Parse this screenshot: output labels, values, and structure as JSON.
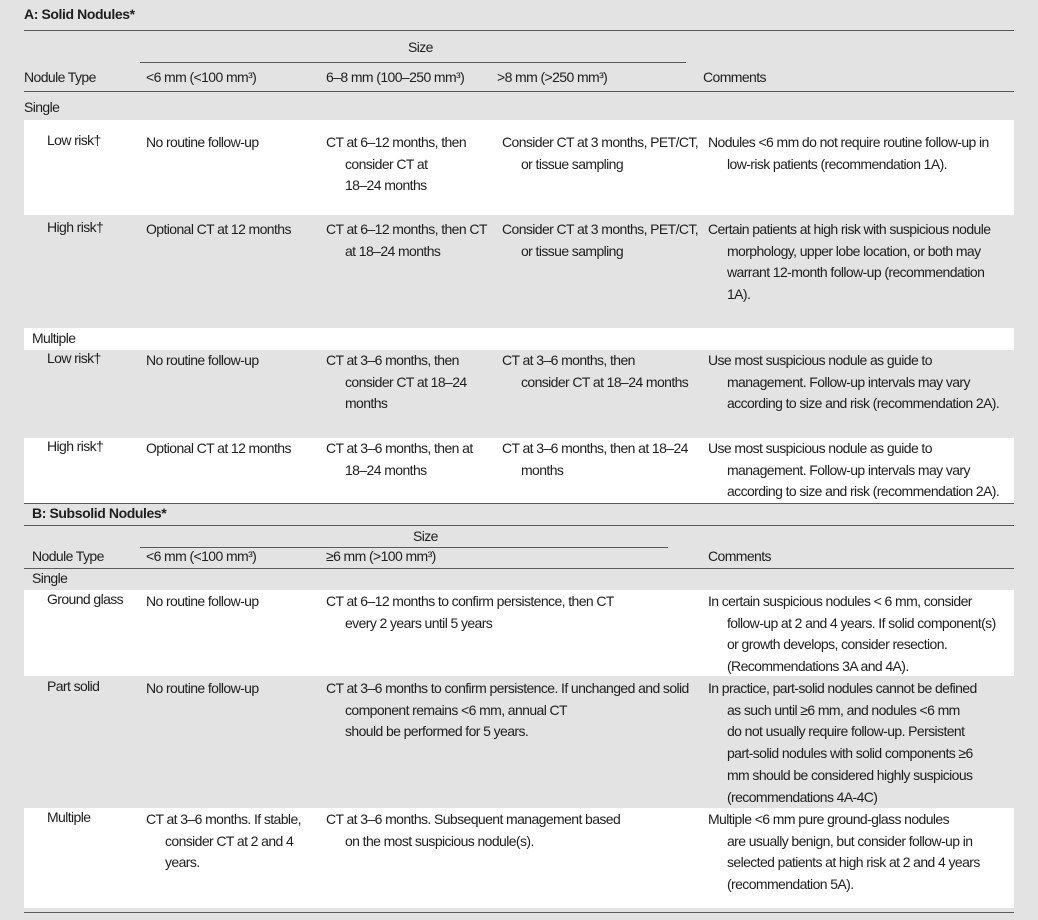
{
  "colors": {
    "background": "#e3e3e3",
    "band": "#ffffff",
    "rule": "#5a5a5a",
    "text": "#1e1e1e"
  },
  "section_a": {
    "title": "A: Solid Nodules*",
    "size_label": "Size",
    "headers": [
      "Nodule Type",
      "<6 mm (<100 mm³)",
      "6–8 mm (100–250 mm³)",
      ">8 mm (>250 mm³)",
      "Comments"
    ],
    "groups": [
      {
        "label": "Single",
        "rows": [
          {
            "type": "Low risk†",
            "cells": [
              [
                "No routine follow-up"
              ],
              [
                "CT at 6–12 months, then",
                "consider CT at",
                "18–24 months"
              ],
              [
                "Consider CT at 3 months, PET/CT,",
                "or tissue sampling"
              ],
              [
                "Nodules <6 mm do not require routine follow-up in",
                "low-risk patients (recommendation 1A)."
              ]
            ]
          },
          {
            "type": "High risk†",
            "cells": [
              [
                "Optional CT at 12 months"
              ],
              [
                "CT at 6–12 months, then CT",
                "at 18–24 months"
              ],
              [
                "Consider CT at 3 months, PET/CT,",
                "or tissue sampling"
              ],
              [
                "Certain patients at high risk with suspicious nodule",
                "morphology, upper lobe location, or both may",
                "warrant 12-month follow-up (recommendation",
                "1A)."
              ]
            ]
          }
        ]
      },
      {
        "label": "Multiple",
        "rows": [
          {
            "type": "Low risk†",
            "cells": [
              [
                "No routine follow-up"
              ],
              [
                "CT at 3–6 months, then",
                "consider CT at 18–24",
                "months"
              ],
              [
                "CT at 3–6 months, then",
                "consider CT at 18–24 months"
              ],
              [
                "Use most suspicious nodule as guide to",
                "management. Follow-up intervals may vary",
                "according to size and risk (recommendation 2A)."
              ]
            ]
          },
          {
            "type": "High risk†",
            "cells": [
              [
                "Optional CT at 12 months"
              ],
              [
                "CT at 3–6 months, then at",
                "18–24 months"
              ],
              [
                "CT at 3–6 months, then at 18–24",
                "months"
              ],
              [
                "Use most suspicious nodule as guide to",
                "management. Follow-up intervals may vary",
                "according to size and risk (recommendation 2A)."
              ]
            ]
          }
        ]
      }
    ]
  },
  "section_b": {
    "title": "B: Subsolid Nodules*",
    "size_label": "Size",
    "headers": [
      "Nodule Type",
      "<6 mm (<100 mm³)",
      "≥6 mm (>100 mm³)",
      "Comments"
    ],
    "single_label": "Single",
    "rows": [
      {
        "type": "Ground glass",
        "cells": [
          [
            "No routine follow-up"
          ],
          [
            "CT at 6–12 months to confirm persistence, then CT",
            "every 2 years until 5 years"
          ],
          [
            "In certain suspicious nodules < 6 mm, consider",
            "follow-up at 2 and 4 years. If solid component(s)",
            "or growth develops, consider resection.",
            "(Recommendations 3A and 4A)."
          ]
        ]
      },
      {
        "type": "Part solid",
        "cells": [
          [
            "No routine follow-up"
          ],
          [
            "CT at 3–6 months to confirm persistence. If unchanged and solid",
            "component remains <6 mm, annual CT",
            "should be performed for 5 years."
          ],
          [
            "In practice, part-solid nodules cannot be defined",
            "as such until ≥6 mm, and nodules <6 mm",
            "do not usually require follow-up. Persistent",
            "part-solid nodules with solid components ≥6",
            "mm should be considered highly suspicious",
            "(recommendations 4A-4C)"
          ]
        ]
      },
      {
        "type": "Multiple",
        "cells": [
          [
            "CT at 3–6 months. If stable,",
            "consider CT at 2 and 4",
            "years."
          ],
          [
            "CT at 3–6 months. Subsequent management based",
            "on the most suspicious nodule(s)."
          ],
          [
            "Multiple <6 mm pure ground-glass nodules",
            "are usually benign, but consider follow-up in",
            "selected patients at high risk at 2 and 4 years",
            "(recommendation 5A)."
          ]
        ]
      }
    ]
  }
}
